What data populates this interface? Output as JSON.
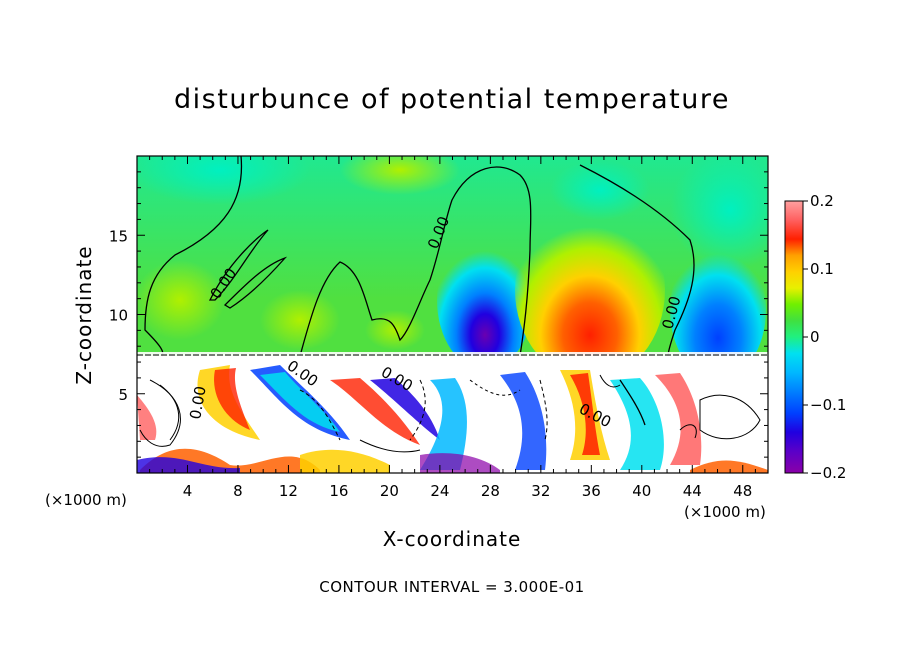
{
  "chart_data": {
    "type": "heatmap",
    "title": "disturbunce of potential temperature",
    "xlabel": "X-coordinate",
    "ylabel": "Z-coordinate",
    "x_unit": "(×1000 m)",
    "x_unit_right": "(×1000 m)",
    "x_ticks": [
      "4",
      "8",
      "12",
      "16",
      "20",
      "24",
      "28",
      "32",
      "36",
      "40",
      "44",
      "48"
    ],
    "y_ticks": [
      "5",
      "10",
      "15"
    ],
    "xlim": [
      0,
      50
    ],
    "ylim": [
      0,
      20
    ],
    "colorbar": {
      "ticks": [
        "0.2",
        "0.1",
        "0",
        "−0.1",
        "−0.2"
      ],
      "tick_values": [
        0.2,
        0.1,
        0,
        -0.1,
        -0.2
      ],
      "range": [
        -0.2,
        0.2
      ],
      "colors": [
        "#8a00a8",
        "#5a00c8",
        "#2000e0",
        "#0040ff",
        "#0080ff",
        "#00b8ff",
        "#00e0f0",
        "#00f0c0",
        "#20f080",
        "#40e040",
        "#70f000",
        "#b0f000",
        "#e8f000",
        "#ffd000",
        "#ffa000",
        "#ff6000",
        "#ff2000",
        "#ff6060",
        "#ffa0a0"
      ]
    },
    "contour_labels": [
      "0.00",
      "0.00",
      "0.00",
      "0.00",
      "0.00",
      "0.00",
      "0.00"
    ],
    "footer": "CONTOUR INTERVAL = 3.000E-01"
  }
}
